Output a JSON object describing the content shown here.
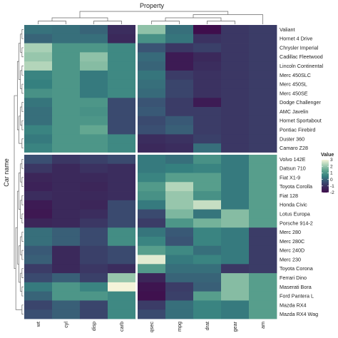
{
  "chart_data": {
    "type": "heatmap",
    "title": "",
    "xlabel": "Property",
    "ylabel": "Car name",
    "columns": [
      "wt",
      "cyl",
      "disp",
      "carb",
      "qsec",
      "mpg",
      "drat",
      "gear",
      "am"
    ],
    "column_groups": [
      4,
      5
    ],
    "rows": [
      "Valiant",
      "Hornet 4 Drive",
      "Chrysler Imperial",
      "Cadillac Fleetwood",
      "Lincoln Continental",
      "Merc 450SLC",
      "Merc 450SL",
      "Merc 450SE",
      "Dodge Challenger",
      "AMC Javelin",
      "Hornet Sportabout",
      "Pontiac Firebird",
      "Duster 360",
      "Camaro Z28",
      "Volvo 142E",
      "Datsun 710",
      "Fiat X1-9",
      "Toyota Corolla",
      "Fiat 128",
      "Honda Civic",
      "Lotus Europa",
      "Porsche 914-2",
      "Merc 280",
      "Merc 280C",
      "Merc 240D",
      "Merc 230",
      "Toyota Corona",
      "Ferrari Dino",
      "Maserati Bora",
      "Ford Pantera L",
      "Mazda RX4",
      "Mazda RX4 Wag"
    ],
    "row_groups": [
      14,
      18
    ],
    "values": [
      [
        0.25,
        0.2,
        0.0,
        -1.1,
        1.9,
        0.2,
        -2.0,
        -0.9,
        -0.8
      ],
      [
        0.0,
        0.2,
        0.2,
        -1.2,
        0.9,
        0.3,
        -1.0,
        -0.9,
        -0.8
      ],
      [
        2.2,
        1.0,
        1.0,
        0.7,
        -0.3,
        -0.9,
        -0.7,
        -0.9,
        -0.8
      ],
      [
        2.0,
        1.0,
        1.9,
        0.7,
        0.1,
        -1.6,
        -1.2,
        -0.9,
        -0.8
      ],
      [
        2.3,
        1.0,
        1.8,
        0.7,
        0.0,
        -1.6,
        -1.1,
        -0.9,
        -0.8
      ],
      [
        0.6,
        1.0,
        0.4,
        0.7,
        0.3,
        -0.8,
        -1.0,
        -0.9,
        -0.8
      ],
      [
        0.5,
        1.0,
        0.4,
        0.7,
        0.2,
        -0.6,
        -1.0,
        -0.9,
        -0.8
      ],
      [
        0.9,
        1.0,
        0.4,
        0.7,
        0.1,
        -0.6,
        -1.0,
        -0.9,
        -0.8
      ],
      [
        0.3,
        1.0,
        1.0,
        -0.5,
        -0.3,
        -0.8,
        -1.6,
        -0.9,
        -0.8
      ],
      [
        0.2,
        1.0,
        0.9,
        -0.5,
        -0.2,
        -0.8,
        -0.8,
        -0.9,
        -0.8
      ],
      [
        0.2,
        1.0,
        1.0,
        -0.5,
        -0.5,
        -0.2,
        -0.8,
        -0.9,
        -0.8
      ],
      [
        0.6,
        1.0,
        1.4,
        -0.5,
        -0.4,
        -0.1,
        -0.8,
        -0.9,
        -0.8
      ],
      [
        0.4,
        1.0,
        1.0,
        0.7,
        -1.1,
        -1.0,
        -0.7,
        -0.9,
        -0.8
      ],
      [
        0.6,
        1.0,
        1.0,
        0.7,
        -1.2,
        -1.1,
        0.2,
        -0.9,
        -0.8
      ],
      [
        -0.4,
        -0.9,
        -0.7,
        -0.5,
        0.4,
        0.2,
        0.9,
        0.4,
        1.2
      ],
      [
        -0.9,
        -1.2,
        -1.0,
        -1.1,
        0.4,
        0.5,
        0.6,
        0.4,
        1.2
      ],
      [
        -1.3,
        -1.2,
        -1.2,
        -1.1,
        0.6,
        1.2,
        1.2,
        0.4,
        1.2
      ],
      [
        -1.4,
        -1.2,
        -1.3,
        -1.1,
        1.1,
        2.3,
        1.2,
        0.4,
        1.2
      ],
      [
        -1.1,
        -1.2,
        -1.2,
        -1.1,
        0.9,
        2.0,
        0.9,
        0.4,
        1.2
      ],
      [
        -1.6,
        -1.2,
        -1.3,
        -0.5,
        0.4,
        2.0,
        2.5,
        0.4,
        1.2
      ],
      [
        -1.7,
        -1.2,
        -1.1,
        -0.5,
        -0.5,
        1.7,
        0.3,
        1.8,
        1.2
      ],
      [
        -1.3,
        -1.2,
        -0.9,
        -0.5,
        -0.8,
        1.0,
        1.6,
        1.8,
        1.2
      ],
      [
        0.2,
        -0.1,
        -0.5,
        0.8,
        0.3,
        -0.2,
        0.6,
        0.4,
        -0.8
      ],
      [
        0.2,
        -0.1,
        -0.5,
        0.8,
        0.6,
        -0.3,
        0.6,
        0.4,
        -0.8
      ],
      [
        -0.2,
        -1.2,
        -0.7,
        -0.5,
        1.2,
        0.7,
        0.2,
        0.4,
        -0.8
      ],
      [
        -0.1,
        -1.2,
        -0.7,
        -0.5,
        2.8,
        0.4,
        0.6,
        0.4,
        -0.8
      ],
      [
        -0.8,
        -1.2,
        -0.9,
        -1.1,
        1.1,
        0.2,
        0.2,
        -0.9,
        -0.8
      ],
      [
        -0.5,
        -0.1,
        -0.7,
        2.0,
        -1.3,
        0.0,
        0.0,
        1.8,
        1.2
      ],
      [
        0.4,
        1.0,
        0.6,
        3.0,
        -1.8,
        -0.8,
        -0.1,
        1.8,
        1.2
      ],
      [
        0.0,
        1.0,
        1.0,
        0.7,
        -1.9,
        -0.7,
        1.2,
        1.8,
        1.2
      ],
      [
        -0.6,
        -0.1,
        -0.6,
        0.7,
        -0.8,
        0.2,
        0.6,
        0.4,
        1.2
      ],
      [
        -0.4,
        -0.1,
        -0.6,
        0.7,
        -0.5,
        0.2,
        0.6,
        0.4,
        1.2
      ]
    ],
    "colorbar": {
      "title": "Value",
      "min": -2,
      "max": 3,
      "ticks": [
        3,
        2,
        1,
        0,
        -1,
        -2
      ]
    },
    "colors": [
      "#3f0e4c",
      "#3b2a5c",
      "#3a5274",
      "#35807f",
      "#5da48e",
      "#a6cfb4",
      "#f5f4da"
    ]
  }
}
